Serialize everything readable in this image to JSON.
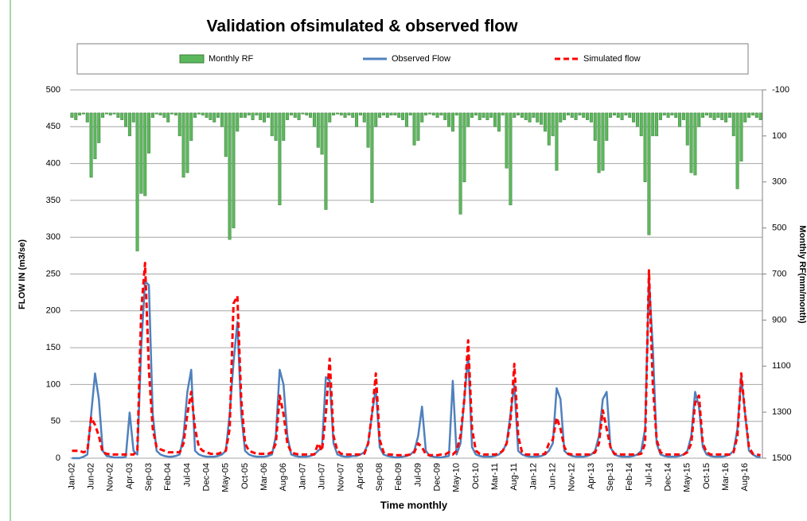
{
  "chart_data": {
    "type": "bar-line",
    "title": "Validation ofsimulated & observed flow",
    "x_label": "Time monthly",
    "y_label": "FLOW IN (m3/se)",
    "y2_label": "Monthly RF(mm/month)",
    "y2_inverted": true,
    "grid": true,
    "legend": "top",
    "categories": [
      "Jan-02",
      null,
      null,
      null,
      null,
      "Jun-02",
      null,
      null,
      null,
      null,
      "Nov-02",
      null,
      null,
      null,
      null,
      "Apr-03",
      null,
      null,
      null,
      null,
      "Sep-03",
      null,
      null,
      null,
      null,
      "Feb-04",
      null,
      null,
      null,
      null,
      "Jul-04",
      null,
      null,
      null,
      null,
      "Dec-04",
      null,
      null,
      null,
      null,
      "May-05",
      null,
      null,
      null,
      null,
      "Oct-05",
      null,
      null,
      null,
      null,
      "Mar-06",
      null,
      null,
      null,
      null,
      "Aug-06",
      null,
      null,
      null,
      null,
      "Jan-07",
      null,
      null,
      null,
      null,
      "Jun-07",
      null,
      null,
      null,
      null,
      "Nov-07",
      null,
      null,
      null,
      null,
      "Apr-08",
      null,
      null,
      null,
      null,
      "Sep-08",
      null,
      null,
      null,
      null,
      "Feb-09",
      null,
      null,
      null,
      null,
      "Jul-09",
      null,
      null,
      null,
      null,
      "Dec-09",
      null,
      null,
      null,
      null,
      "May-10",
      null,
      null,
      null,
      null,
      "Oct-10",
      null,
      null,
      null,
      null,
      "Mar-11",
      null,
      null,
      null,
      null,
      "Aug-11",
      null,
      null,
      null,
      null,
      "Jan-12",
      null,
      null,
      null,
      null,
      "Jun-12",
      null,
      null,
      null,
      null,
      "Nov-12",
      null,
      null,
      null,
      null,
      "Apr-13",
      null,
      null,
      null,
      null,
      "Sep-13",
      null,
      null,
      null,
      null,
      "Feb-14",
      null,
      null,
      null,
      null,
      "Jul-14",
      null,
      null,
      null,
      null,
      "Dec-14",
      null,
      null,
      null,
      null,
      "May-15",
      null,
      null,
      null,
      null,
      "Oct-15",
      null,
      null,
      null,
      null,
      "Mar-16",
      null,
      null,
      null,
      null,
      "Aug-16",
      null,
      null,
      null,
      null
    ],
    "ylim": [
      0,
      500
    ],
    "yticks": [
      0,
      50,
      100,
      150,
      200,
      250,
      300,
      350,
      400,
      450,
      500
    ],
    "y2lim": [
      -100,
      1500
    ],
    "y2ticks": [
      -100,
      100,
      300,
      500,
      700,
      900,
      1100,
      1300,
      1500
    ],
    "series": [
      {
        "name": "Monthly RF",
        "type": "bar",
        "axis": "y2",
        "color": "#5cb85c",
        "values": [
          20,
          30,
          10,
          5,
          40,
          280,
          200,
          130,
          20,
          5,
          10,
          5,
          20,
          30,
          60,
          100,
          40,
          600,
          350,
          360,
          175,
          20,
          5,
          10,
          20,
          40,
          5,
          10,
          100,
          280,
          260,
          120,
          20,
          5,
          10,
          20,
          30,
          40,
          20,
          60,
          190,
          550,
          500,
          80,
          20,
          20,
          10,
          30,
          10,
          30,
          40,
          20,
          100,
          120,
          400,
          120,
          30,
          10,
          20,
          30,
          5,
          10,
          20,
          60,
          150,
          180,
          420,
          40,
          10,
          5,
          10,
          20,
          10,
          20,
          60,
          10,
          40,
          150,
          390,
          60,
          20,
          10,
          20,
          10,
          10,
          20,
          30,
          60,
          10,
          140,
          120,
          40,
          10,
          5,
          10,
          20,
          10,
          30,
          60,
          80,
          10,
          440,
          300,
          60,
          20,
          10,
          30,
          20,
          30,
          20,
          60,
          80,
          10,
          240,
          400,
          20,
          10,
          20,
          30,
          40,
          20,
          40,
          50,
          80,
          140,
          100,
          250,
          40,
          30,
          10,
          20,
          30,
          10,
          20,
          30,
          40,
          120,
          260,
          250,
          120,
          20,
          10,
          20,
          30,
          10,
          20,
          40,
          60,
          100,
          300,
          530,
          100,
          100,
          30,
          10,
          20,
          10,
          20,
          60,
          30,
          140,
          260,
          270,
          60,
          20,
          10,
          20,
          30,
          20,
          30,
          40,
          20,
          100,
          330,
          210,
          40,
          20,
          10,
          20,
          30
        ]
      },
      {
        "name": "Observed Flow",
        "type": "line",
        "color": "#4f81bd",
        "values": [
          0,
          0,
          0,
          2,
          5,
          60,
          115,
          80,
          10,
          3,
          2,
          1,
          1,
          1,
          2,
          62,
          10,
          5,
          150,
          240,
          235,
          60,
          10,
          5,
          3,
          2,
          2,
          3,
          5,
          30,
          90,
          120,
          10,
          5,
          3,
          2,
          2,
          2,
          3,
          5,
          10,
          60,
          130,
          185,
          60,
          10,
          5,
          3,
          2,
          2,
          2,
          3,
          5,
          30,
          120,
          100,
          30,
          5,
          3,
          2,
          2,
          2,
          3,
          5,
          10,
          15,
          110,
          105,
          20,
          5,
          3,
          2,
          2,
          3,
          3,
          5,
          8,
          20,
          60,
          95,
          15,
          5,
          3,
          2,
          1,
          1,
          2,
          3,
          5,
          10,
          30,
          70,
          10,
          3,
          2,
          1,
          1,
          2,
          3,
          105,
          5,
          20,
          80,
          140,
          15,
          5,
          3,
          2,
          2,
          2,
          3,
          5,
          10,
          20,
          60,
          100,
          10,
          5,
          3,
          2,
          2,
          2,
          3,
          5,
          10,
          20,
          95,
          80,
          10,
          5,
          3,
          2,
          2,
          2,
          3,
          5,
          10,
          30,
          80,
          90,
          15,
          5,
          3,
          2,
          2,
          2,
          3,
          5,
          10,
          40,
          245,
          150,
          20,
          5,
          3,
          2,
          2,
          2,
          3,
          5,
          10,
          30,
          90,
          70,
          15,
          5,
          3,
          2,
          2,
          2,
          3,
          5,
          10,
          40,
          110,
          60,
          10,
          5,
          2,
          1
        ]
      },
      {
        "name": "Simulated flow",
        "type": "line",
        "dashed": true,
        "color": "#ff0000",
        "values": [
          10,
          10,
          10,
          8,
          10,
          55,
          45,
          30,
          8,
          6,
          5,
          5,
          5,
          5,
          5,
          5,
          5,
          10,
          200,
          265,
          120,
          40,
          15,
          12,
          10,
          8,
          8,
          8,
          8,
          20,
          60,
          90,
          40,
          15,
          10,
          8,
          6,
          6,
          6,
          8,
          10,
          40,
          210,
          220,
          80,
          20,
          10,
          8,
          6,
          6,
          6,
          6,
          8,
          20,
          85,
          60,
          20,
          8,
          6,
          5,
          5,
          5,
          5,
          5,
          20,
          10,
          60,
          135,
          30,
          10,
          6,
          5,
          5,
          5,
          5,
          5,
          6,
          20,
          60,
          115,
          25,
          8,
          5,
          5,
          4,
          4,
          4,
          4,
          5,
          8,
          20,
          15,
          5,
          4,
          4,
          4,
          5,
          5,
          8,
          5,
          10,
          30,
          80,
          160,
          40,
          10,
          6,
          5,
          5,
          5,
          5,
          6,
          10,
          20,
          50,
          128,
          30,
          8,
          5,
          5,
          5,
          5,
          5,
          6,
          20,
          25,
          55,
          40,
          15,
          6,
          5,
          5,
          5,
          5,
          5,
          5,
          8,
          20,
          65,
          40,
          15,
          6,
          5,
          5,
          5,
          5,
          5,
          5,
          6,
          20,
          255,
          100,
          25,
          8,
          5,
          5,
          5,
          5,
          5,
          5,
          8,
          20,
          75,
          85,
          20,
          8,
          5,
          5,
          5,
          5,
          5,
          5,
          8,
          30,
          115,
          60,
          15,
          6,
          5,
          4
        ]
      }
    ]
  }
}
